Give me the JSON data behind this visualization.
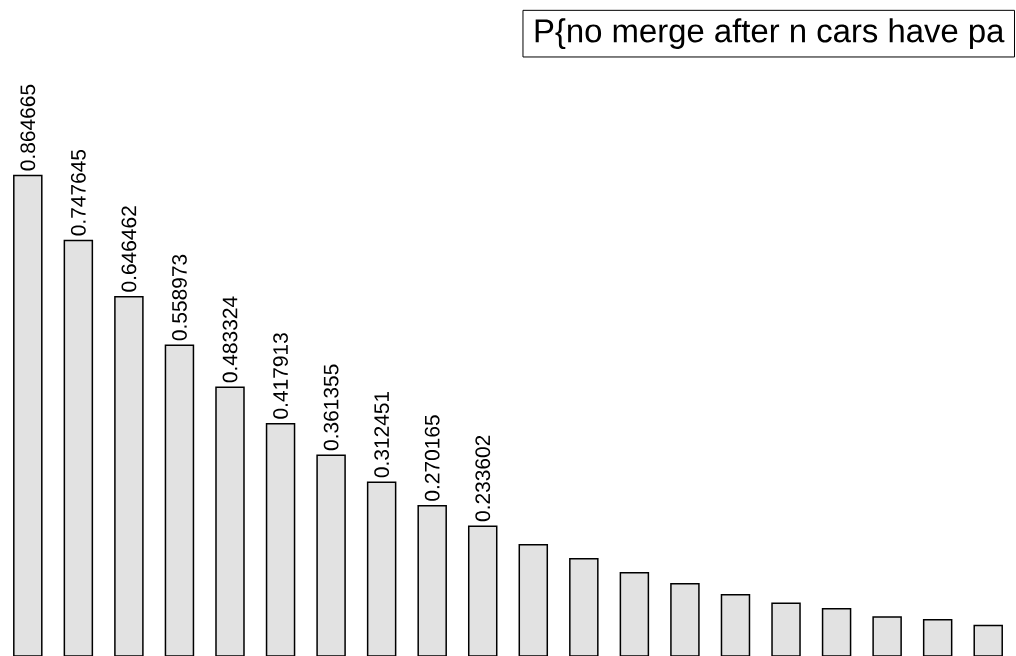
{
  "chart_data": {
    "type": "bar",
    "title": "P{no merge after n cars have pa",
    "categories": [
      null,
      null,
      null,
      null,
      null,
      null,
      null,
      null,
      null,
      null,
      null,
      null,
      null,
      null,
      null,
      null,
      null,
      null,
      null,
      null
    ],
    "values": [
      0.864665,
      0.747645,
      0.646462,
      0.558973,
      0.483324,
      0.417913,
      0.361355,
      0.312451,
      0.270165,
      0.233602,
      0.2,
      0.175,
      0.15,
      0.13,
      0.11,
      0.095,
      0.085,
      0.07,
      0.065,
      0.055
    ],
    "value_labels": [
      "0.864665",
      "0.747645",
      "0.646462",
      "0.558973",
      "0.483324",
      "0.417913",
      "0.361355",
      "0.312451",
      "0.270165",
      "0.233602",
      null,
      null,
      null,
      null,
      null,
      null,
      null,
      null,
      null,
      null
    ],
    "color": "#e2e2e2"
  }
}
